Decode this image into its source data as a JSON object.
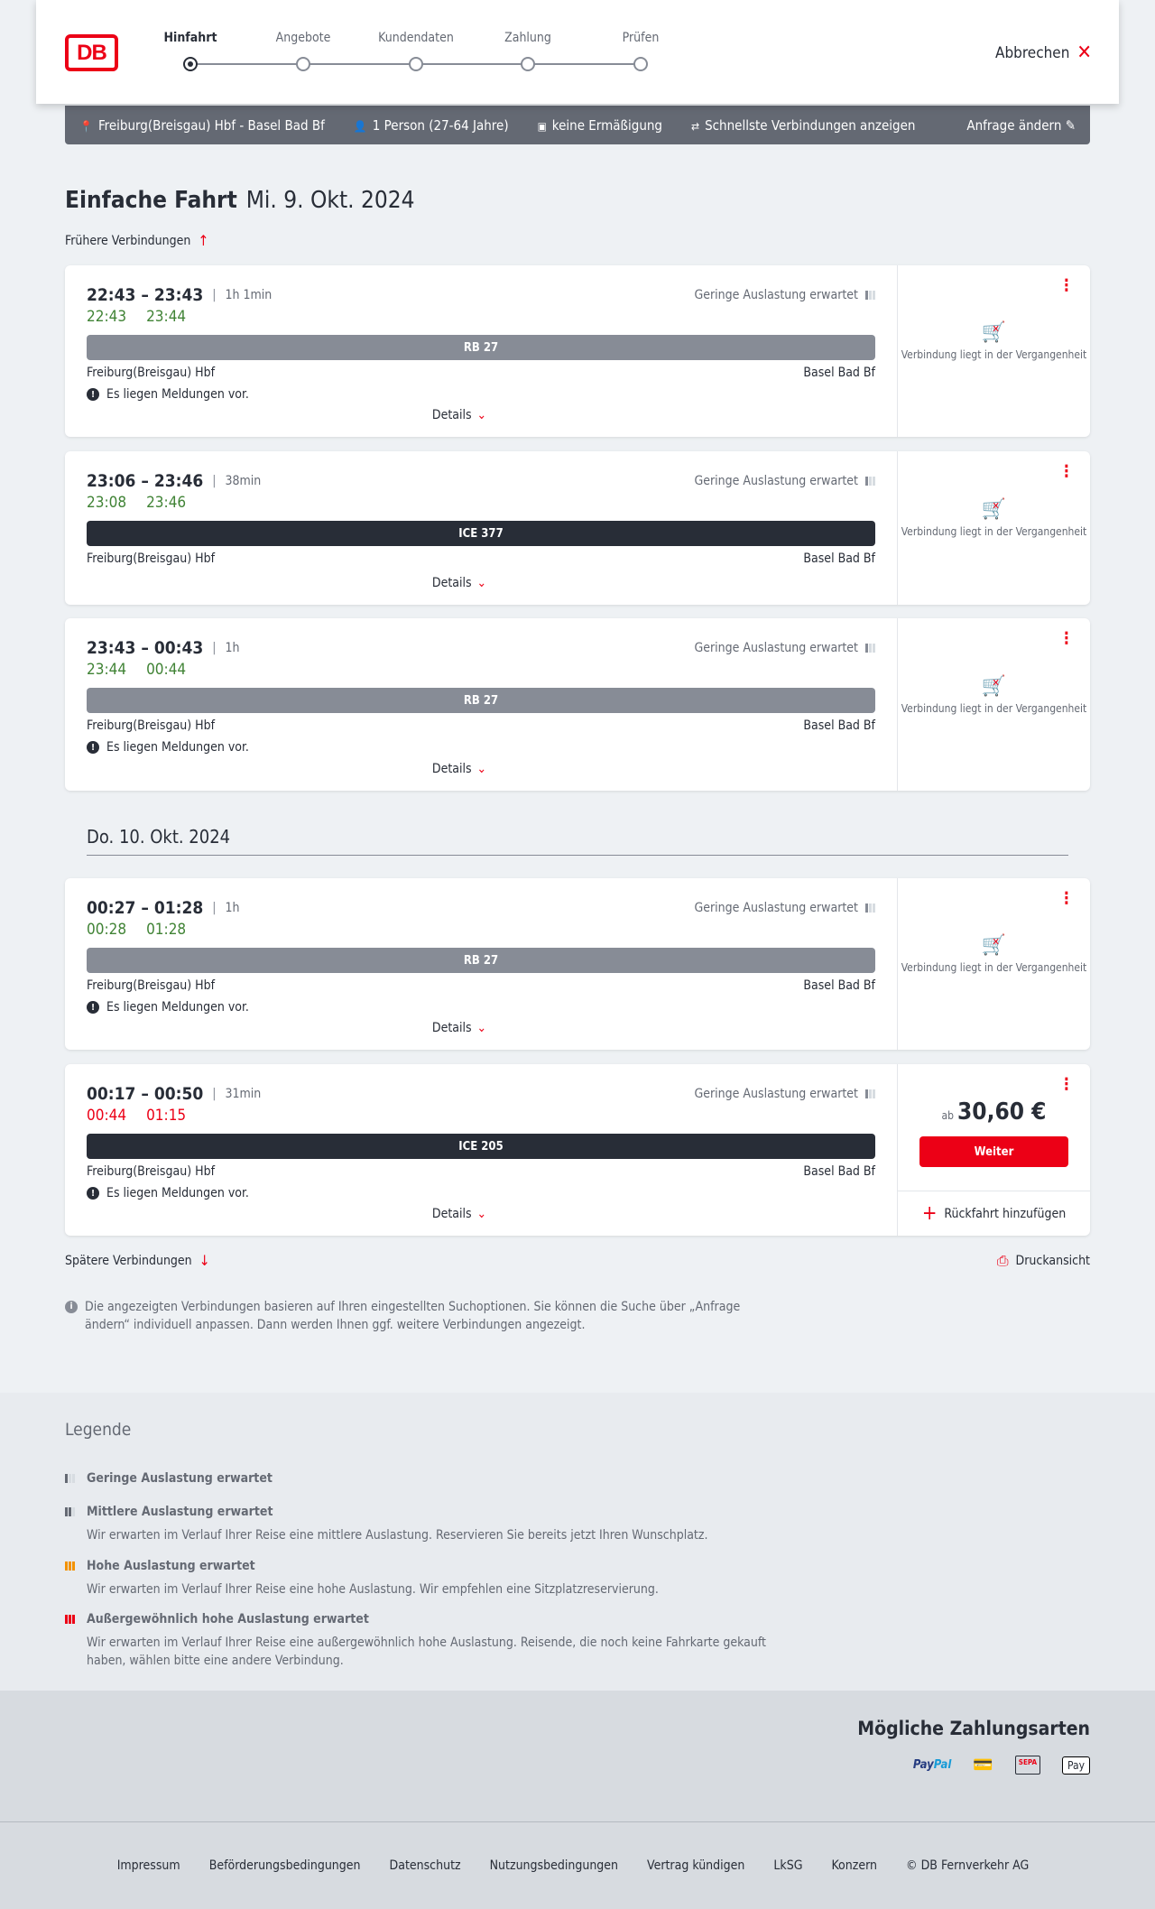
{
  "header": {
    "logo": "DB",
    "steps": [
      "Hinfahrt",
      "Angebote",
      "Kundendaten",
      "Zahlung",
      "Prüfen"
    ],
    "active_step": 0,
    "cancel": "Abbrechen"
  },
  "search": {
    "route": "Freiburg(Breisgau) Hbf - Basel Bad Bf",
    "passengers": "1 Person (27-64 Jahre)",
    "discount": "keine Ermäßigung",
    "fastest": "Schnellste Verbindungen anzeigen",
    "change": "Anfrage ändern"
  },
  "title": {
    "type": "Einfache Fahrt",
    "date": "Mi. 9. Okt. 2024"
  },
  "earlier": "Frühere Verbindungen",
  "later": "Spätere Verbindungen",
  "print": "Druckansicht",
  "date_divider": "Do. 10. Okt. 2024",
  "labels": {
    "details": "Details",
    "messages": "Es liegen Meldungen vor.",
    "past": "Verbindung liegt in der Vergangenheit",
    "price_prefix": "ab",
    "continue": "Weiter",
    "return": "Rückfahrt hinzufügen"
  },
  "connections": [
    {
      "time": "22:43 – 23:43",
      "duration": "1h 1min",
      "occupancy": "Geringe Auslastung erwartet",
      "rt_dep": "22:43",
      "rt_arr": "23:44",
      "rt_status": "ok",
      "train": "RB 27",
      "train_color": "#878c96",
      "from": "Freiburg(Breisgau) Hbf",
      "to": "Basel Bad Bf",
      "messages": true,
      "past": true
    },
    {
      "time": "23:06 – 23:46",
      "duration": "38min",
      "occupancy": "Geringe Auslastung erwartet",
      "rt_dep": "23:08",
      "rt_arr": "23:46",
      "rt_status": "ok",
      "train": "ICE 377",
      "train_color": "#282d37",
      "from": "Freiburg(Breisgau) Hbf",
      "to": "Basel Bad Bf",
      "messages": false,
      "past": true
    },
    {
      "time": "23:43 – 00:43",
      "duration": "1h",
      "occupancy": "Geringe Auslastung erwartet",
      "rt_dep": "23:44",
      "rt_arr": "00:44",
      "rt_status": "ok",
      "train": "RB 27",
      "train_color": "#878c96",
      "from": "Freiburg(Breisgau) Hbf",
      "to": "Basel Bad Bf",
      "messages": true,
      "past": true
    },
    {
      "time": "00:27 – 01:28",
      "duration": "1h",
      "occupancy": "Geringe Auslastung erwartet",
      "rt_dep": "00:28",
      "rt_arr": "01:28",
      "rt_status": "ok",
      "train": "RB 27",
      "train_color": "#878c96",
      "from": "Freiburg(Breisgau) Hbf",
      "to": "Basel Bad Bf",
      "messages": true,
      "past": true
    },
    {
      "time": "00:17 – 00:50",
      "duration": "31min",
      "occupancy": "Geringe Auslastung erwartet",
      "rt_dep": "00:44",
      "rt_arr": "01:15",
      "rt_status": "late",
      "train": "ICE 205",
      "train_color": "#282d37",
      "from": "Freiburg(Breisgau) Hbf",
      "to": "Basel Bad Bf",
      "messages": true,
      "past": false,
      "price": "30,60 €"
    }
  ],
  "info": "Die angezeigten Verbindungen basieren auf Ihren eingestellten Suchoptionen. Sie können die Suche über „Anfrage ändern“ individuell anpassen. Dann werden Ihnen ggf. weitere Verbindungen angezeigt.",
  "legend": {
    "title": "Legende",
    "items": [
      {
        "title": "Geringe Auslastung erwartet",
        "text": "",
        "level": 1,
        "color": "#646973"
      },
      {
        "title": "Mittlere Auslastung erwartet",
        "text": "Wir erwarten im Verlauf Ihrer Reise eine mittlere Auslastung. Reservieren Sie bereits jetzt Ihren Wunschplatz.",
        "level": 2,
        "color": "#646973"
      },
      {
        "title": "Hohe Auslastung erwartet",
        "text": "Wir erwarten im Verlauf Ihrer Reise eine hohe Auslastung. Wir empfehlen eine Sitzplatzreservierung.",
        "level": 3,
        "color": "#f39200"
      },
      {
        "title": "Außergewöhnlich hohe Auslastung erwartet",
        "text": "Wir erwarten im Verlauf Ihrer Reise eine außergewöhnlich hohe Auslastung. Reisende, die noch keine Fahrkarte gekauft haben, wählen bitte eine andere Verbindung.",
        "level": 4,
        "color": "#ec0016"
      }
    ]
  },
  "payment": {
    "title": "Mögliche Zahlungsarten",
    "methods": [
      "PayPal",
      "Kreditkarte",
      "SEPA",
      "Apple Pay"
    ]
  },
  "footer": [
    "Impressum",
    "Beförderungsbedingungen",
    "Datenschutz",
    "Nutzungsbedingungen",
    "Vertrag kündigen",
    "LkSG",
    "Konzern",
    "© DB Fernverkehr AG"
  ]
}
